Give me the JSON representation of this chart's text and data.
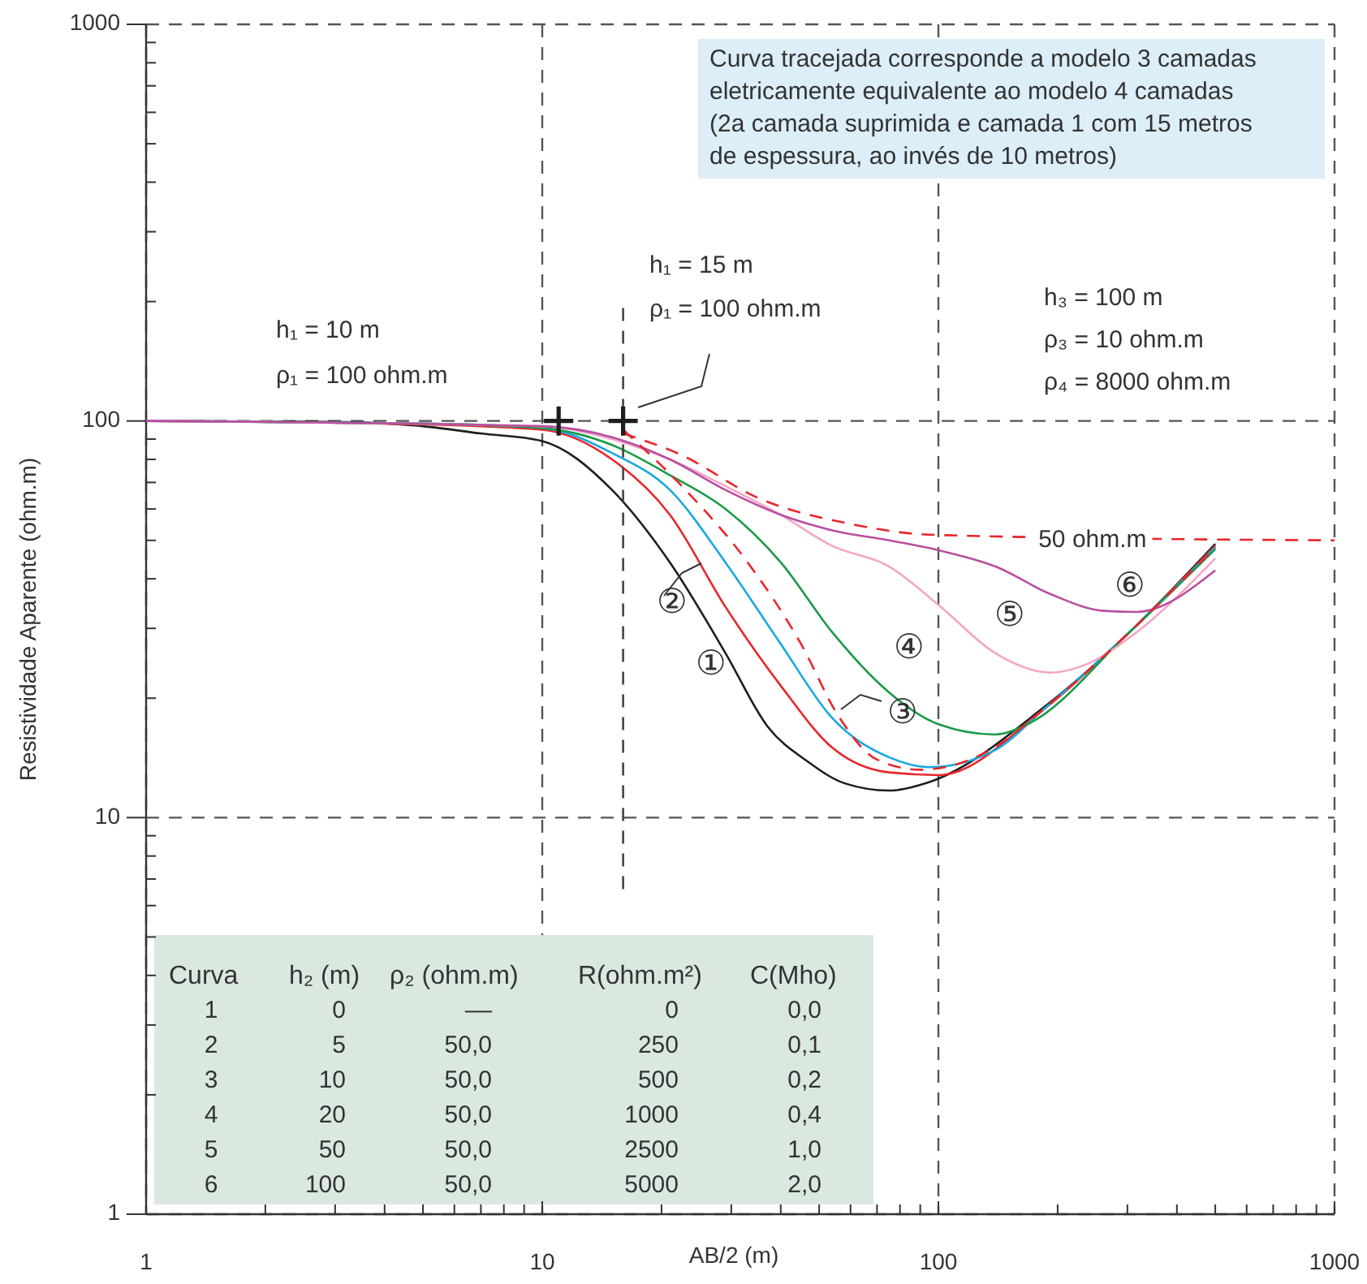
{
  "chart_data": {
    "type": "line",
    "xlabel": "AB/2 (m)",
    "ylabel": "Resistividade Aparente (ohm.m)",
    "log": "xy",
    "grid": true,
    "xlim": [
      1,
      1000
    ],
    "ylim": [
      1,
      1000
    ],
    "xticks": [
      1,
      {
        "value": 2,
        "label": null
      },
      {
        "value": 3,
        "label": null
      },
      {
        "value": 4,
        "label": null
      },
      {
        "value": 5,
        "label": null
      },
      {
        "value": 6,
        "label": null
      },
      {
        "value": 7,
        "label": null
      },
      {
        "value": 8,
        "label": null
      },
      {
        "value": 9,
        "label": null
      },
      10,
      {
        "value": 20,
        "label": null
      },
      {
        "value": 30,
        "label": null
      },
      {
        "value": 40,
        "label": null
      },
      {
        "value": 50,
        "label": null
      },
      {
        "value": 60,
        "label": null
      },
      {
        "value": 70,
        "label": null
      },
      {
        "value": 80,
        "label": null
      },
      {
        "value": 90,
        "label": null
      },
      100,
      {
        "value": 200,
        "label": null
      },
      {
        "value": 300,
        "label": null
      },
      {
        "value": 400,
        "label": null
      },
      {
        "value": 500,
        "label": null
      },
      {
        "value": 600,
        "label": null
      },
      {
        "value": 700,
        "label": null
      },
      {
        "value": 800,
        "label": null
      },
      {
        "value": 900,
        "label": null
      },
      1000
    ],
    "yticks": [
      1,
      {
        "value": 2,
        "label": null
      },
      {
        "value": 3,
        "label": null
      },
      {
        "value": 4,
        "label": null
      },
      {
        "value": 5,
        "label": null
      },
      {
        "value": 6,
        "label": null
      },
      {
        "value": 7,
        "label": null
      },
      {
        "value": 8,
        "label": null
      },
      {
        "value": 9,
        "label": null
      },
      10,
      {
        "value": 20,
        "label": null
      },
      {
        "value": 30,
        "label": null
      },
      {
        "value": 40,
        "label": null
      },
      {
        "value": 50,
        "label": null
      },
      {
        "value": 60,
        "label": null
      },
      {
        "value": 70,
        "label": null
      },
      {
        "value": 80,
        "label": null
      },
      {
        "value": 90,
        "label": null
      },
      100,
      {
        "value": 200,
        "label": null
      },
      {
        "value": 300,
        "label": null
      },
      {
        "value": 400,
        "label": null
      },
      {
        "value": 500,
        "label": null
      },
      {
        "value": 600,
        "label": null
      },
      {
        "value": 700,
        "label": null
      },
      {
        "value": 800,
        "label": null
      },
      {
        "value": 900,
        "label": null
      },
      1000
    ],
    "series": [
      {
        "color": "#1e1e1e",
        "x": [
          1,
          3,
          5,
          7,
          10,
          15,
          21,
          29,
          37,
          47,
          58,
          75,
          95,
          185,
          300,
          500
        ],
        "values": [
          100,
          99.5,
          97,
          93,
          89,
          67,
          44,
          26,
          17,
          13.8,
          12.2,
          11.7,
          12.3,
          19,
          29,
          49
        ]
      },
      {
        "color": "#e8262b",
        "x": [
          1,
          5,
          10,
          15,
          21,
          29,
          40,
          54,
          75,
          100,
          185,
          300,
          500
        ],
        "values": [
          100,
          98,
          95,
          80,
          58,
          34,
          21.5,
          15,
          13,
          12.8,
          18.8,
          29,
          48.5
        ]
      },
      {
        "color": "#1aa8e0",
        "x": [
          1,
          5,
          10,
          15,
          21,
          29,
          40,
          54,
          75,
          95,
          139,
          185,
          300,
          500
        ],
        "values": [
          100,
          98.5,
          96,
          83,
          67,
          44,
          27.4,
          17.8,
          14.2,
          13.4,
          14.8,
          18.8,
          29,
          48
        ]
      },
      {
        "color": "#1a9a48",
        "x": [
          1,
          5,
          10,
          15,
          21,
          29,
          40,
          54,
          75,
          100,
          139,
          168,
          300,
          500
        ],
        "values": [
          100,
          98.5,
          96,
          87,
          73,
          60,
          44,
          29.3,
          20.7,
          17.2,
          16.2,
          17.2,
          29,
          47.5
        ]
      },
      {
        "color": "#f4a6c4",
        "x": [
          1,
          10,
          15,
          21,
          29,
          40,
          54,
          75,
          100,
          139,
          192,
          240,
          316,
          500
        ],
        "values": [
          100,
          97,
          90,
          80,
          68.5,
          58,
          48.4,
          43,
          34.4,
          26,
          23.2,
          24.5,
          29.3,
          45
        ]
      },
      {
        "color": "#b94fa0",
        "x": [
          1,
          10,
          15,
          21,
          29,
          40,
          54,
          75,
          102,
          139,
          192,
          262,
          316,
          500
        ],
        "values": [
          100,
          97,
          91,
          80,
          67,
          58,
          53,
          50,
          47,
          43,
          36.6,
          33.2,
          33,
          42
        ]
      },
      {
        "color": "#e8262b",
        "line_style": "dashed",
        "x": [
          16,
          23,
          33,
          45,
          56,
          70,
          90,
          135,
          185,
          300,
          500
        ],
        "values": [
          95,
          67,
          44,
          27.4,
          18,
          14,
          13.2,
          14.8,
          18.8,
          29,
          48
        ]
      },
      {
        "color": "#e8262b",
        "line_style": "dashed",
        "x": [
          16,
          22.5,
          35,
          60,
          98,
          1000
        ],
        "values": [
          93,
          82,
          64,
          55,
          51.6,
          50
        ]
      },
      {
        "color": "#444444",
        "line_style": "dashed",
        "x": [
          16,
          16
        ],
        "values": [
          6.6,
          195
        ]
      },
      {
        "type": "scatter",
        "marker": "cross",
        "color": "#1e1e1e",
        "x": [
          11,
          16
        ],
        "values": [
          100,
          100
        ]
      }
    ],
    "annotations": [
      "Curva tracejada corresponde a modelo 3 camadas\neletricamente equivalente ao modelo 4 camadas\n(2a camada suprimida e camada 1 com 15 metros\nde espessura, ao invés de 10 metros)",
      "h₁ = 10 m",
      "ρ₁ = 100 ohm.m",
      "h₁ = 15 m",
      "ρ₁ = 100 ohm.m",
      "h₃ = 100 m",
      "ρ₃ = 10 ohm.m",
      "ρ₄ = 8000 ohm.m",
      {
        "text": "50 ohm.m",
        "x": 245,
        "y": 50
      },
      "①",
      "②",
      "③",
      "④",
      "⑤",
      "⑥",
      "Curva\th₂ (m)\tρ₂ (ohm.m)\tR(ohm.m²)\tC(Mho)",
      "1\t0\t––\t0\t0,0",
      "2\t5\t50,0\t250\t0,1",
      "3\t10\t50,0\t500\t0,2",
      "4\t20\t50,0\t1000\t0,4",
      "5\t50\t50,0\t2500\t1,0",
      "6\t100\t50,0\t5000\t2,0"
    ]
  }
}
